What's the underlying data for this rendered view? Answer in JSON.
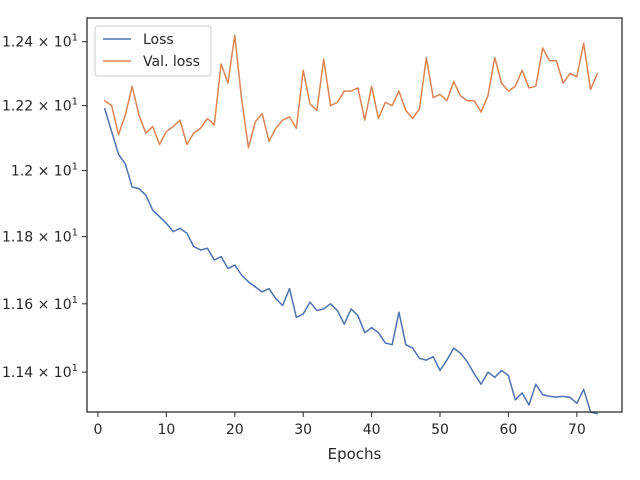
{
  "chart_data": {
    "type": "line",
    "xlabel": "Epochs",
    "ylabel": "",
    "xlim": [
      -1.6,
      76.6
    ],
    "ylim": [
      11.285,
      12.475
    ],
    "x_ticks": [
      {
        "value": 0,
        "label": "0"
      },
      {
        "value": 10,
        "label": "10"
      },
      {
        "value": 20,
        "label": "20"
      },
      {
        "value": 30,
        "label": "30"
      },
      {
        "value": 40,
        "label": "40"
      },
      {
        "value": 50,
        "label": "50"
      },
      {
        "value": 60,
        "label": "60"
      },
      {
        "value": 70,
        "label": "70"
      }
    ],
    "y_ticks": [
      {
        "value": 11.4,
        "base": "1.14",
        "exp": "1"
      },
      {
        "value": 11.6,
        "base": "1.16",
        "exp": "1"
      },
      {
        "value": 11.8,
        "base": "1.18",
        "exp": "1"
      },
      {
        "value": 12.0,
        "base": "1.2",
        "exp": "1"
      },
      {
        "value": 12.2,
        "base": "1.22",
        "exp": "1"
      },
      {
        "value": 12.4,
        "base": "1.24",
        "exp": "1"
      }
    ],
    "y_scale": "log",
    "grid": false,
    "legend_position": "top-left",
    "x": [
      1,
      2,
      3,
      4,
      5,
      6,
      7,
      8,
      9,
      10,
      11,
      12,
      13,
      14,
      15,
      16,
      17,
      18,
      19,
      20,
      21,
      22,
      23,
      24,
      25,
      26,
      27,
      28,
      29,
      30,
      31,
      32,
      33,
      34,
      35,
      36,
      37,
      38,
      39,
      40,
      41,
      42,
      43,
      44,
      45,
      46,
      47,
      48,
      49,
      50,
      51,
      52,
      53,
      54,
      55,
      56,
      57,
      58,
      59,
      60,
      61,
      62,
      63,
      64,
      65,
      66,
      67,
      68,
      69,
      70,
      71,
      72,
      73
    ],
    "series": [
      {
        "name": "Loss",
        "color": "#4c72b0",
        "values": [
          12.19,
          12.12,
          12.05,
          12.02,
          11.95,
          11.945,
          11.925,
          11.88,
          11.86,
          11.84,
          11.815,
          11.825,
          11.81,
          11.77,
          11.76,
          11.765,
          11.73,
          11.74,
          11.705,
          11.715,
          11.685,
          11.665,
          11.65,
          11.635,
          11.645,
          11.615,
          11.595,
          11.645,
          11.56,
          11.57,
          11.605,
          11.58,
          11.585,
          11.6,
          11.58,
          11.54,
          11.585,
          11.565,
          11.515,
          11.53,
          11.515,
          11.485,
          11.48,
          11.575,
          11.48,
          11.47,
          11.44,
          11.435,
          11.445,
          11.405,
          11.435,
          11.47,
          11.455,
          11.43,
          11.395,
          11.365,
          11.4,
          11.385,
          11.405,
          11.39,
          11.32,
          11.34,
          11.305,
          11.365,
          11.335,
          11.33,
          11.328,
          11.33,
          11.327,
          11.31,
          11.35,
          11.285,
          11.28
        ]
      },
      {
        "name": "Val. loss",
        "color": "#dd8452",
        "values": [
          12.215,
          12.2,
          12.11,
          12.17,
          12.26,
          12.17,
          12.115,
          12.135,
          12.08,
          12.12,
          12.135,
          12.155,
          12.08,
          12.115,
          12.13,
          12.16,
          12.14,
          12.33,
          12.27,
          12.42,
          12.22,
          12.07,
          12.15,
          12.175,
          12.09,
          12.13,
          12.155,
          12.165,
          12.13,
          12.31,
          12.205,
          12.185,
          12.345,
          12.2,
          12.21,
          12.245,
          12.245,
          12.255,
          12.155,
          12.26,
          12.16,
          12.21,
          12.2,
          12.245,
          12.185,
          12.16,
          12.19,
          12.35,
          12.225,
          12.235,
          12.215,
          12.275,
          12.23,
          12.215,
          12.215,
          12.18,
          12.23,
          12.35,
          12.27,
          12.245,
          12.26,
          12.31,
          12.255,
          12.26,
          12.38,
          12.34,
          12.34,
          12.27,
          12.3,
          12.29,
          12.395,
          12.25,
          12.3
        ]
      }
    ]
  }
}
